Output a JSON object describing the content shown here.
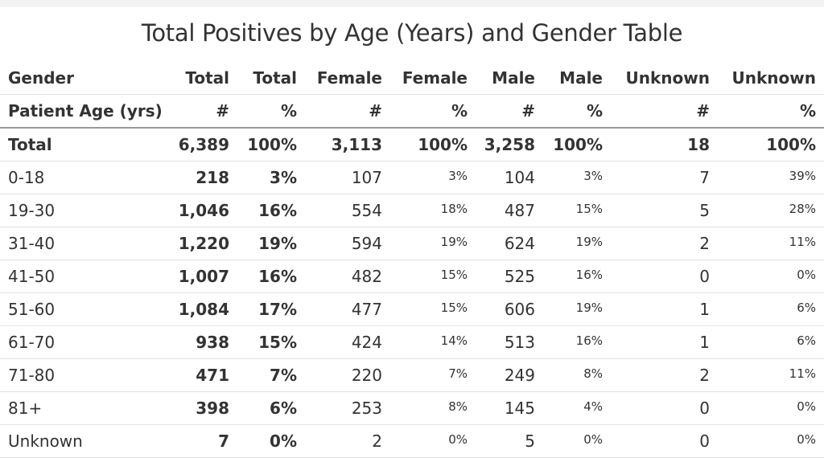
{
  "title": "Total Positives by Age (Years) and Gender Table",
  "header_row1": [
    "Gender",
    "Total",
    "Total",
    "Female",
    "Female",
    "Male",
    "Male",
    "Unknown",
    "Unknown"
  ],
  "header_row2": [
    "Patient Age (yrs)",
    "#",
    "%",
    "#",
    "%",
    "#",
    "%",
    "#",
    "%"
  ],
  "rows": [
    [
      "Total",
      "6,389",
      "100%",
      "3,113",
      "100%",
      "3,258",
      "100%",
      "18",
      "100%"
    ],
    [
      "0-18",
      "218",
      "3%",
      "107",
      "3%",
      "104",
      "3%",
      "7",
      "39%"
    ],
    [
      "19-30",
      "1,046",
      "16%",
      "554",
      "18%",
      "487",
      "15%",
      "5",
      "28%"
    ],
    [
      "31-40",
      "1,220",
      "19%",
      "594",
      "19%",
      "624",
      "19%",
      "2",
      "11%"
    ],
    [
      "41-50",
      "1,007",
      "16%",
      "482",
      "15%",
      "525",
      "16%",
      "0",
      "0%"
    ],
    [
      "51-60",
      "1,084",
      "17%",
      "477",
      "15%",
      "606",
      "19%",
      "1",
      "6%"
    ],
    [
      "61-70",
      "938",
      "15%",
      "424",
      "14%",
      "513",
      "16%",
      "1",
      "6%"
    ],
    [
      "71-80",
      "471",
      "7%",
      "220",
      "7%",
      "249",
      "8%",
      "2",
      "11%"
    ],
    [
      "81+",
      "398",
      "6%",
      "253",
      "8%",
      "145",
      "4%",
      "0",
      "0%"
    ],
    [
      "Unknown",
      "7",
      "0%",
      "2",
      "0%",
      "5",
      "0%",
      "0",
      "0%"
    ]
  ]
}
